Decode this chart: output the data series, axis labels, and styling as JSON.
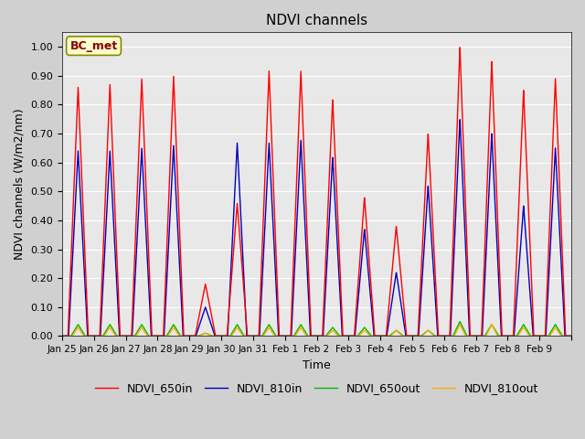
{
  "title": "NDVI channels",
  "xlabel": "Time",
  "ylabel": "NDVI channels (W/m2/nm)",
  "ylim": [
    0.0,
    1.05
  ],
  "annotation": "BC_met",
  "tick_labels": [
    "Jan 25",
    "Jan 26",
    "Jan 27",
    "Jan 28",
    "Jan 29",
    "Jan 30",
    "Jan 31",
    "Feb 1",
    "Feb 2",
    "Feb 3",
    "Feb 4",
    "Feb 5",
    "Feb 6",
    "Feb 7",
    "Feb 8",
    "Feb 9"
  ],
  "colors": {
    "NDVI_650in": "#ff0000",
    "NDVI_810in": "#0000bb",
    "NDVI_650out": "#00bb00",
    "NDVI_810out": "#ffaa00"
  },
  "legend_labels": [
    "NDVI_650in",
    "NDVI_810in",
    "NDVI_650out",
    "NDVI_810out"
  ],
  "spike_peaks_650in": [
    0.86,
    0.87,
    0.89,
    0.9,
    0.18,
    0.46,
    0.92,
    0.92,
    0.82,
    0.48,
    0.38,
    0.7,
    1.0,
    0.95,
    0.85,
    0.89
  ],
  "spike_peaks_810in": [
    0.64,
    0.64,
    0.65,
    0.66,
    0.1,
    0.67,
    0.67,
    0.68,
    0.62,
    0.37,
    0.22,
    0.52,
    0.75,
    0.7,
    0.45,
    0.65
  ],
  "spike_peaks_650out": [
    0.04,
    0.04,
    0.04,
    0.04,
    0.01,
    0.04,
    0.04,
    0.04,
    0.03,
    0.03,
    0.02,
    0.02,
    0.05,
    0.04,
    0.04,
    0.04
  ],
  "spike_peaks_810out": [
    0.03,
    0.03,
    0.03,
    0.03,
    0.01,
    0.03,
    0.03,
    0.03,
    0.02,
    0.02,
    0.02,
    0.02,
    0.04,
    0.04,
    0.03,
    0.03
  ],
  "fig_bg": "#d0d0d0",
  "ax_bg": "#e8e8e8"
}
